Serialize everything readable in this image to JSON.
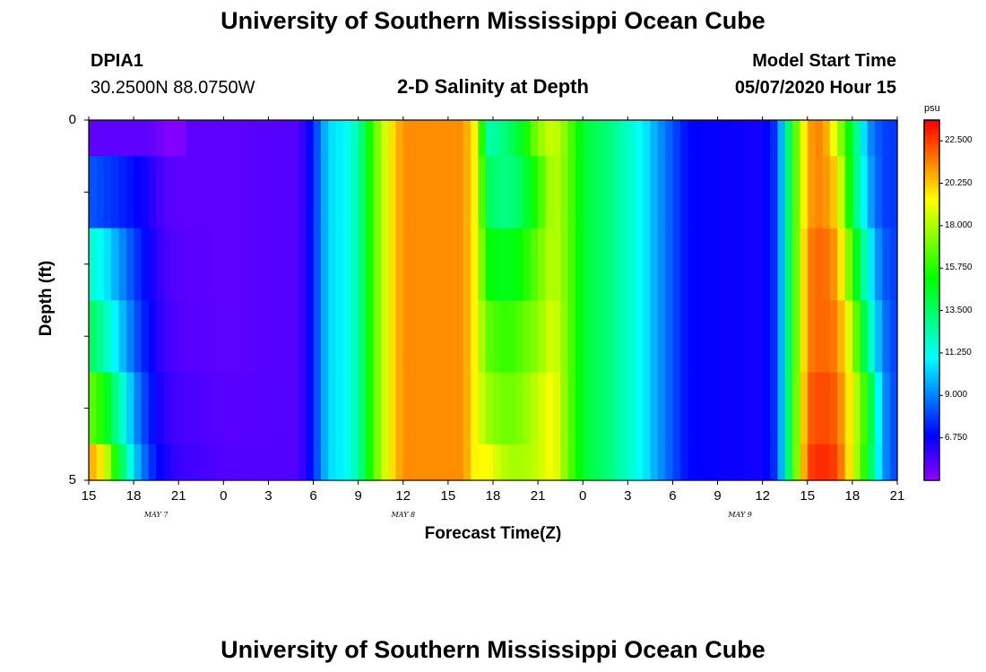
{
  "header": {
    "title": "University of Southern Mississippi Ocean Cube",
    "station": "DPIA1",
    "coordinates": "30.2500N 88.0750W",
    "plot_title": "2-D Salinity at Depth",
    "model_start_label": "Model Start Time",
    "model_start_value": "05/07/2020 Hour 15"
  },
  "footer": {
    "title": "University of Southern Mississippi Ocean Cube"
  },
  "chart_data": {
    "type": "heatmap",
    "title": "2-D Salinity at Depth",
    "xlabel": "Forecast Time(Z)",
    "ylabel": "Depth (ft)",
    "xlim": [
      0,
      54
    ],
    "ylim": [
      5,
      0
    ],
    "x_ticks": [
      "15",
      "18",
      "21",
      "0",
      "3",
      "6",
      "9",
      "12",
      "15",
      "18",
      "21",
      "0",
      "3",
      "6",
      "9",
      "12",
      "15",
      "18",
      "21"
    ],
    "y_ticks": [
      "0",
      "5"
    ],
    "date_labels": [
      {
        "label": "MAY 7",
        "hour_offset": 4.5
      },
      {
        "label": "MAY 8",
        "hour_offset": 21
      },
      {
        "label": "MAY 9",
        "hour_offset": 43.5
      }
    ],
    "colorbar": {
      "units": "psu",
      "min": 4.5,
      "max": 23.6,
      "ticks": [
        "22.500",
        "20.250",
        "18.000",
        "15.750",
        "13.500",
        "11.250",
        "9.000",
        "6.750"
      ],
      "tick_values": [
        22.5,
        20.25,
        18.0,
        15.75,
        13.5,
        11.25,
        9.0,
        6.75
      ]
    },
    "depth_rows": [
      {
        "top": 0,
        "bottom": 0.5
      },
      {
        "top": 0.5,
        "bottom": 1.5
      },
      {
        "top": 1.5,
        "bottom": 2.5
      },
      {
        "top": 2.5,
        "bottom": 3.5
      },
      {
        "top": 3.5,
        "bottom": 4.5
      },
      {
        "top": 4.5,
        "bottom": 5
      }
    ],
    "columns_per_hour": 2,
    "salinity_profile": [
      {
        "hour": 0,
        "values": [
          5.4,
          8.4,
          12.0,
          14.0,
          17.0,
          21.0
        ]
      },
      {
        "hour": 1,
        "values": [
          5.4,
          8.0,
          11.0,
          12.5,
          15.5,
          19.5
        ]
      },
      {
        "hour": 2,
        "values": [
          5.4,
          7.6,
          9.5,
          10.5,
          12.5,
          14.5
        ]
      },
      {
        "hour": 3,
        "values": [
          5.4,
          7.1,
          8.0,
          8.5,
          9.5,
          10.5
        ]
      },
      {
        "hour": 4,
        "values": [
          5.4,
          6.5,
          6.8,
          7.0,
          7.5,
          8.0
        ]
      },
      {
        "hour": 5,
        "values": [
          4.9,
          5.6,
          5.8,
          6.0,
          6.2,
          6.6
        ]
      },
      {
        "hour": 6,
        "values": [
          5.4,
          5.4,
          5.5,
          5.6,
          5.8,
          6.0
        ]
      },
      {
        "hour": 9,
        "values": [
          5.4,
          5.4,
          5.4,
          5.4,
          5.5,
          5.6
        ]
      },
      {
        "hour": 14,
        "values": [
          5.6,
          5.6,
          5.6,
          5.6,
          5.6,
          5.6
        ]
      },
      {
        "hour": 15,
        "values": [
          7.5,
          7.5,
          7.5,
          7.5,
          7.5,
          7.5
        ]
      },
      {
        "hour": 16,
        "values": [
          10.5,
          10.5,
          10.5,
          10.5,
          10.5,
          10.5
        ]
      },
      {
        "hour": 17,
        "values": [
          11.0,
          11.0,
          11.0,
          11.0,
          11.0,
          11.0
        ]
      },
      {
        "hour": 18,
        "values": [
          12.5,
          12.5,
          12.5,
          12.5,
          12.5,
          12.5
        ]
      },
      {
        "hour": 19,
        "values": [
          16.5,
          16.5,
          16.5,
          16.5,
          16.5,
          16.5
        ]
      },
      {
        "hour": 20,
        "values": [
          19.5,
          19.5,
          19.5,
          19.5,
          19.5,
          19.5
        ]
      },
      {
        "hour": 21,
        "values": [
          21.3,
          21.3,
          21.3,
          21.3,
          21.3,
          21.3
        ]
      },
      {
        "hour": 25,
        "values": [
          21.3,
          21.3,
          21.3,
          21.3,
          21.3,
          21.3
        ]
      },
      {
        "hour": 26,
        "values": [
          19.0,
          19.0,
          19.0,
          19.0,
          19.0,
          19.0
        ]
      },
      {
        "hour": 26.5,
        "values": [
          12.5,
          14.0,
          15.5,
          17.0,
          18.0,
          20.0
        ]
      },
      {
        "hour": 27,
        "values": [
          12.5,
          13.5,
          15.0,
          16.5,
          17.5,
          19.0
        ]
      },
      {
        "hour": 28,
        "values": [
          13.5,
          13.0,
          14.8,
          16.0,
          17.0,
          18.0
        ]
      },
      {
        "hour": 29,
        "values": [
          15.0,
          14.0,
          15.5,
          16.8,
          17.5,
          18.0
        ]
      },
      {
        "hour": 30,
        "values": [
          17.5,
          16.0,
          17.0,
          17.5,
          18.5,
          18.5
        ]
      },
      {
        "hour": 31,
        "values": [
          18.8,
          18.5,
          18.5,
          19.0,
          19.5,
          19.5
        ]
      },
      {
        "hour": 32,
        "values": [
          17.0,
          17.0,
          17.0,
          17.0,
          17.0,
          17.0
        ]
      },
      {
        "hour": 33,
        "values": [
          14.5,
          14.5,
          14.5,
          14.5,
          14.5,
          14.5
        ]
      },
      {
        "hour": 35,
        "values": [
          13.0,
          13.0,
          13.0,
          13.0,
          13.0,
          13.0
        ]
      },
      {
        "hour": 37,
        "values": [
          11.0,
          11.0,
          11.0,
          11.0,
          11.0,
          11.0
        ]
      },
      {
        "hour": 38,
        "values": [
          9.5,
          9.5,
          9.5,
          9.5,
          9.5,
          9.5
        ]
      },
      {
        "hour": 40,
        "values": [
          7.0,
          7.0,
          7.0,
          7.0,
          7.0,
          7.0
        ]
      },
      {
        "hour": 45,
        "values": [
          6.6,
          6.6,
          6.6,
          6.6,
          6.6,
          6.6
        ]
      },
      {
        "hour": 46,
        "values": [
          8.0,
          8.0,
          8.0,
          8.0,
          8.0,
          8.0
        ]
      },
      {
        "hour": 47,
        "values": [
          15.5,
          15.5,
          15.5,
          15.5,
          15.5,
          15.5
        ]
      },
      {
        "hour": 48,
        "values": [
          21.0,
          21.0,
          21.5,
          21.5,
          22.0,
          22.5
        ]
      },
      {
        "hour": 49,
        "values": [
          21.5,
          21.5,
          22.0,
          22.0,
          22.5,
          23.0
        ]
      },
      {
        "hour": 50,
        "values": [
          18.5,
          20.0,
          21.0,
          21.5,
          22.0,
          22.5
        ]
      },
      {
        "hour": 51,
        "values": [
          14.0,
          14.0,
          16.0,
          18.0,
          19.0,
          19.0
        ]
      },
      {
        "hour": 52,
        "values": [
          9.5,
          10.0,
          11.5,
          13.0,
          15.5,
          15.0
        ]
      },
      {
        "hour": 53,
        "values": [
          8.0,
          8.0,
          8.5,
          9.0,
          9.5,
          9.5
        ]
      },
      {
        "hour": 54,
        "values": [
          7.8,
          7.8,
          7.8,
          7.8,
          7.8,
          7.8
        ]
      }
    ],
    "anomaly": {
      "hour_start": 5,
      "hour_end": 6.5,
      "depth_top": 0,
      "depth_bottom": 0.5,
      "value": 4.8
    }
  }
}
